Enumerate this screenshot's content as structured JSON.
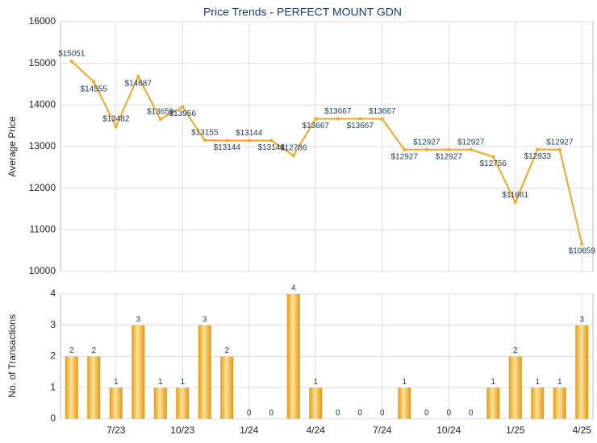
{
  "chart_data": [
    {
      "type": "line",
      "title": "Price Trends - PERFECT MOUNT GDN",
      "y_label": "Average Price",
      "color": "#f5a61e",
      "values": [
        15051,
        14555,
        13482,
        14687,
        13659,
        13956,
        13155,
        13144,
        13144,
        13144,
        12786,
        13667,
        13667,
        13667,
        13667,
        12927,
        12927,
        12927,
        12927,
        12756,
        11661,
        12933,
        12927,
        10659
      ],
      "value_labels": [
        "$15051",
        "$14555",
        "$13482",
        "$14687",
        "$13659",
        "$13956",
        "$13155",
        "$13144",
        "$13144",
        "$13144",
        "$12786",
        "$13667",
        "$13667",
        "$13667",
        "$13667",
        "$12927",
        "$12927",
        "$12927",
        "$12927",
        "$12756",
        "$11661",
        "$12933",
        "$12927",
        "$10659"
      ],
      "ylim": [
        10000,
        16000
      ],
      "yticks": [
        10000,
        11000,
        12000,
        13000,
        14000,
        15000,
        16000
      ],
      "grid": true
    },
    {
      "type": "bar",
      "y_label": "No. of Transactions",
      "color": "#f2b01e",
      "categories": [
        null,
        null,
        "7/23",
        null,
        null,
        "10/23",
        null,
        null,
        "1/24",
        null,
        null,
        "4/24",
        null,
        null,
        "7/24",
        null,
        null,
        "10/24",
        null,
        null,
        "1/25",
        null,
        null,
        "4/25"
      ],
      "values": [
        2,
        2,
        1,
        3,
        1,
        1,
        3,
        2,
        0,
        0,
        4,
        1,
        0,
        0,
        0,
        1,
        0,
        0,
        0,
        1,
        2,
        1,
        1,
        3
      ],
      "ylim": [
        0,
        4
      ],
      "yticks": [
        0,
        1,
        2,
        3,
        4
      ],
      "grid": true
    }
  ]
}
